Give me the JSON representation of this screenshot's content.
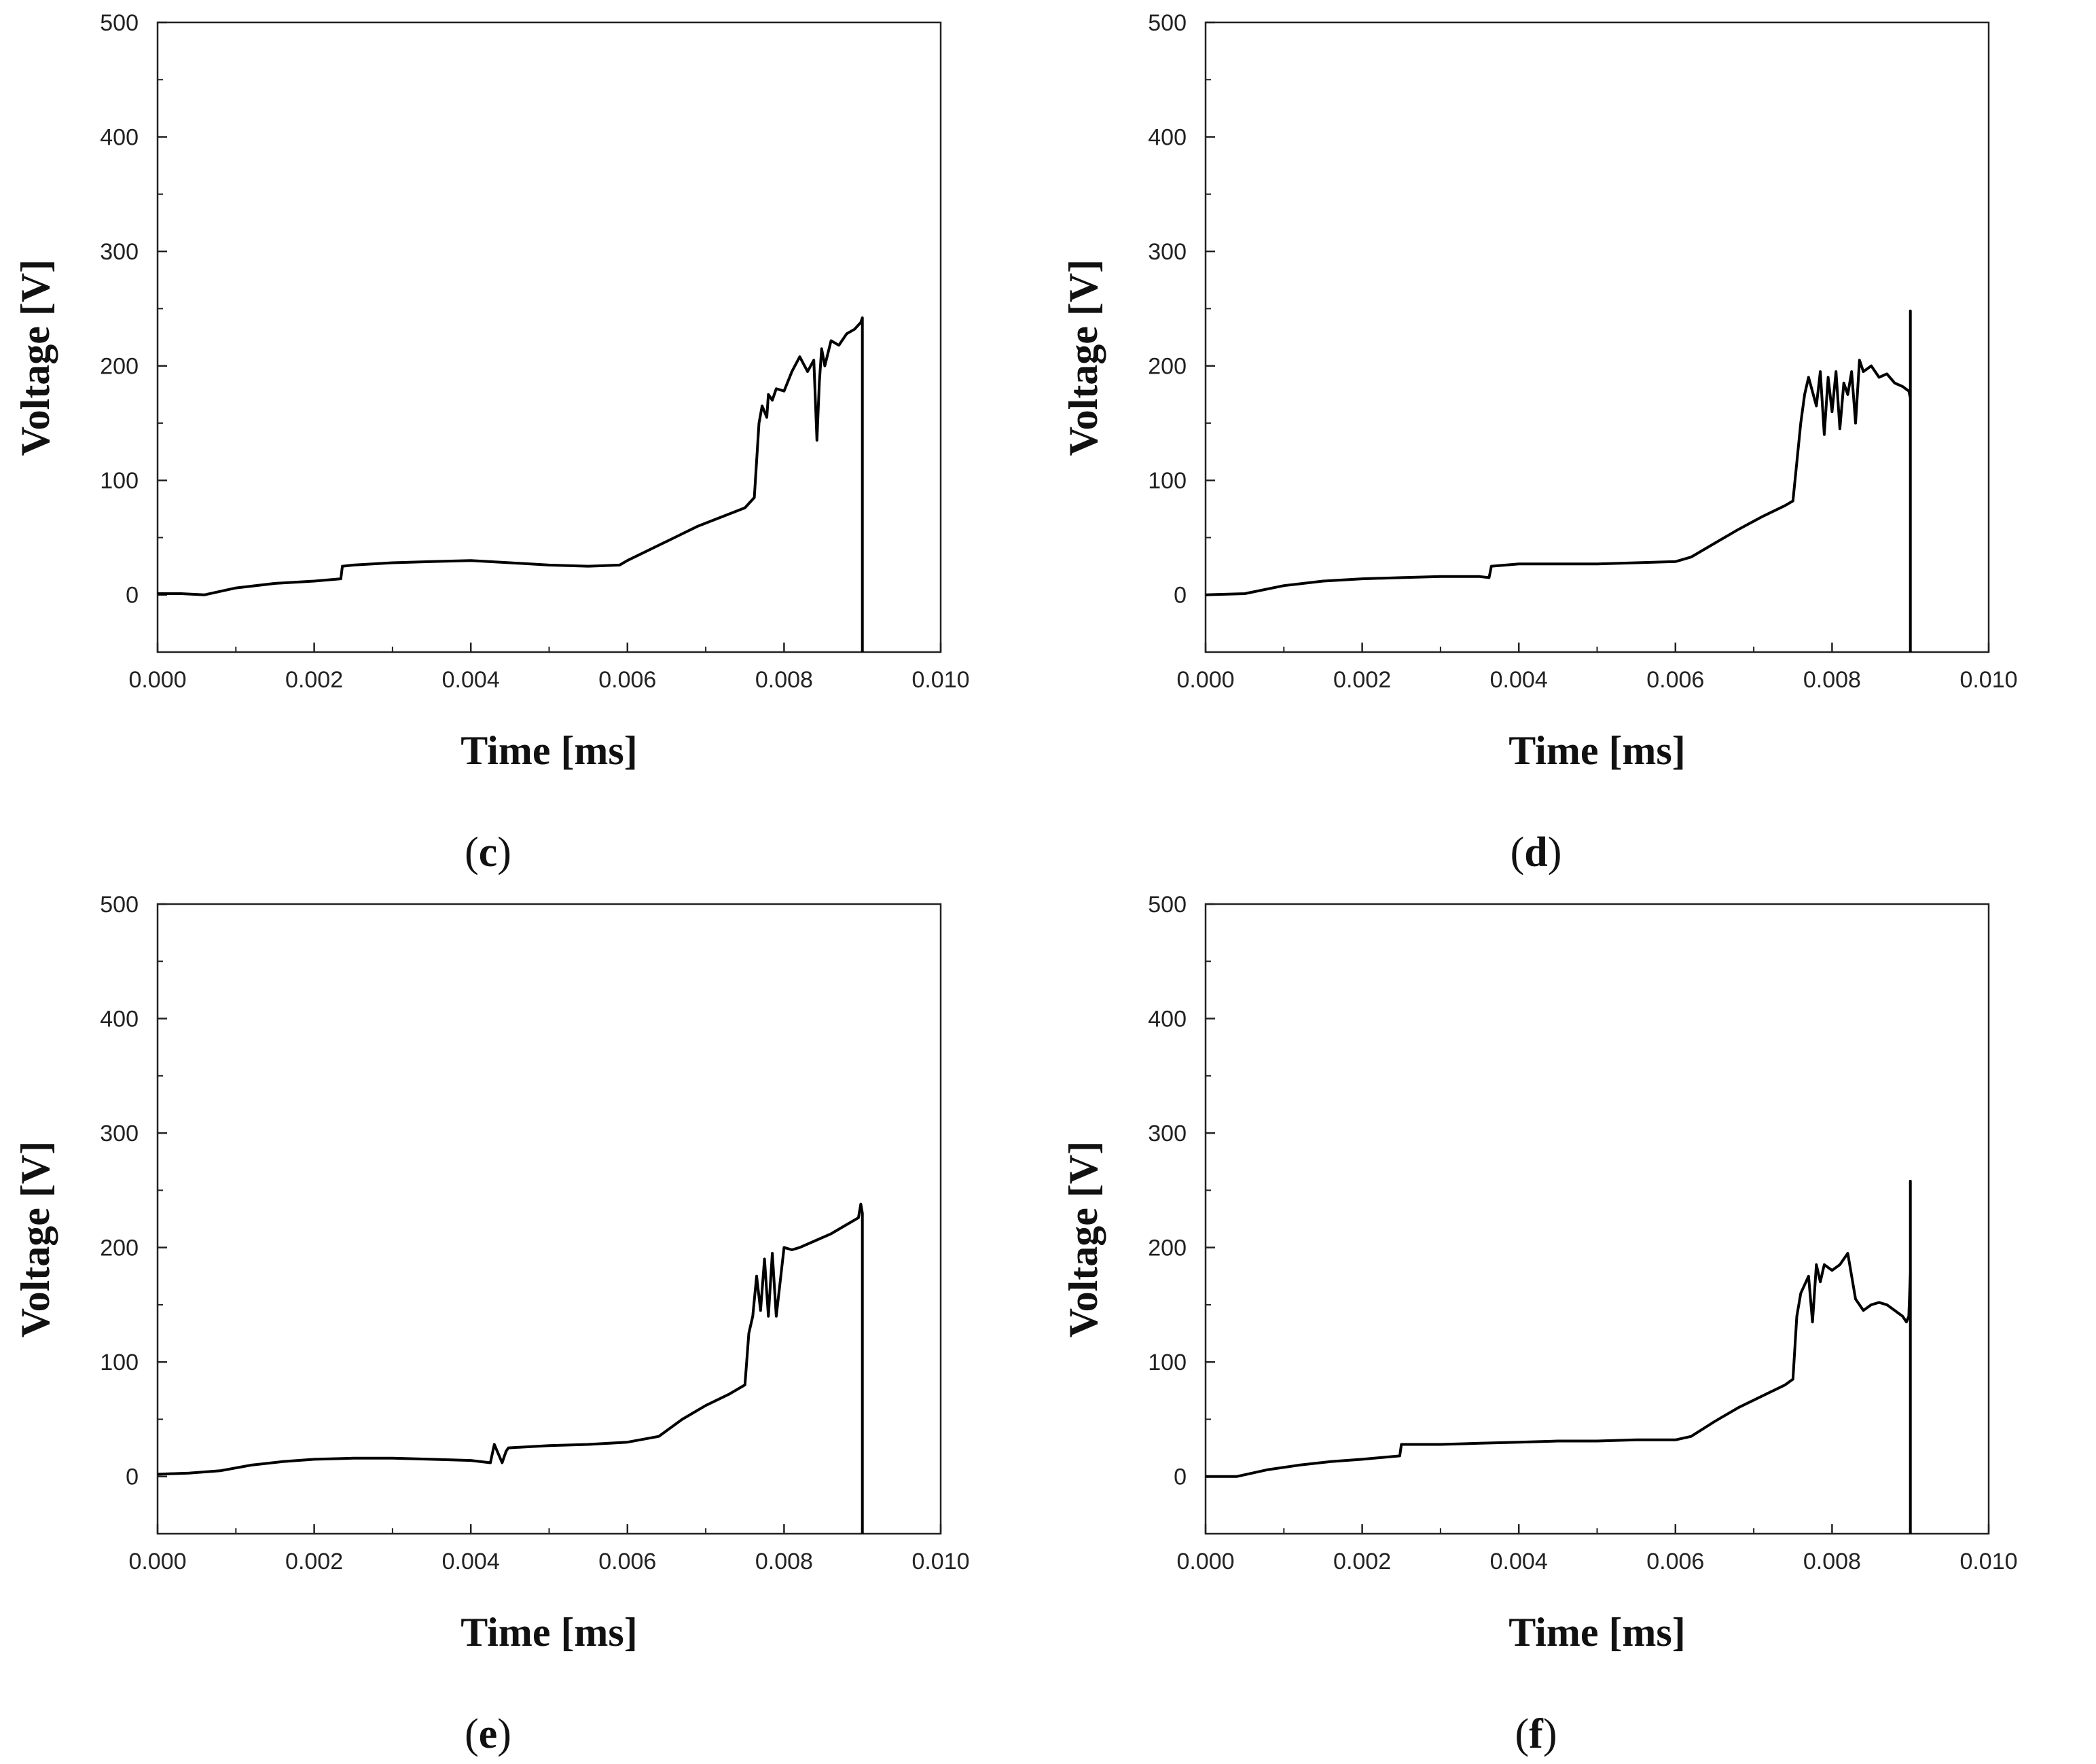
{
  "chart_data": [
    {
      "type": "line",
      "panel_label": "c",
      "xlabel": "Time [ms]",
      "ylabel": "Voltage [V]",
      "xlim": [
        0,
        0.01
      ],
      "ylim": [
        -50,
        500
      ],
      "xticks": [
        "0.000",
        "0.002",
        "0.004",
        "0.006",
        "0.008",
        "0.010"
      ],
      "yticks": [
        "0",
        "100",
        "200",
        "300",
        "400",
        "500"
      ],
      "grid": false,
      "series": [
        {
          "name": "Voltage",
          "x": [
            0,
            0.0003,
            0.0006,
            0.001,
            0.0015,
            0.002,
            0.00234,
            0.00236,
            0.0025,
            0.003,
            0.0035,
            0.004,
            0.0045,
            0.005,
            0.0055,
            0.0059,
            0.006,
            0.0063,
            0.0066,
            0.0069,
            0.0072,
            0.0075,
            0.00762,
            0.00768,
            0.00772,
            0.00778,
            0.0078,
            0.00785,
            0.0079,
            0.008,
            0.0081,
            0.0082,
            0.0083,
            0.00838,
            0.00842,
            0.00845,
            0.00848,
            0.00852,
            0.0086,
            0.0087,
            0.0088,
            0.0089,
            0.00898,
            0.009,
            0.009,
            0.00901
          ],
          "y": [
            1,
            1,
            0,
            6,
            10,
            12,
            14,
            25,
            26,
            28,
            29,
            30,
            28,
            26,
            25,
            26,
            30,
            40,
            50,
            60,
            68,
            76,
            85,
            150,
            165,
            155,
            175,
            170,
            180,
            178,
            195,
            208,
            195,
            205,
            135,
            185,
            215,
            200,
            222,
            218,
            228,
            232,
            238,
            242,
            -50,
            -50
          ]
        }
      ]
    },
    {
      "type": "line",
      "panel_label": "d",
      "xlabel": "Time [ms]",
      "ylabel": "Voltage [V]",
      "xlim": [
        0,
        0.01
      ],
      "ylim": [
        -50,
        500
      ],
      "xticks": [
        "0.000",
        "0.002",
        "0.004",
        "0.006",
        "0.008",
        "0.010"
      ],
      "yticks": [
        "0",
        "100",
        "200",
        "300",
        "400",
        "500"
      ],
      "grid": false,
      "series": [
        {
          "name": "Voltage",
          "x": [
            0,
            0.0005,
            0.001,
            0.0015,
            0.002,
            0.0025,
            0.003,
            0.0035,
            0.00362,
            0.00365,
            0.004,
            0.0045,
            0.005,
            0.0055,
            0.006,
            0.0062,
            0.0065,
            0.0068,
            0.0071,
            0.0074,
            0.0075,
            0.0076,
            0.00765,
            0.0077,
            0.0078,
            0.00785,
            0.0079,
            0.00795,
            0.008,
            0.00805,
            0.0081,
            0.00815,
            0.0082,
            0.00825,
            0.0083,
            0.00835,
            0.0084,
            0.0085,
            0.0086,
            0.0087,
            0.0088,
            0.0089,
            0.00898,
            0.009,
            0.009,
            0.009,
            0.00901
          ],
          "y": [
            0,
            1,
            8,
            12,
            14,
            15,
            16,
            16,
            15,
            25,
            27,
            27,
            27,
            28,
            29,
            33,
            45,
            57,
            68,
            78,
            82,
            150,
            175,
            190,
            165,
            195,
            140,
            190,
            160,
            195,
            145,
            185,
            175,
            195,
            150,
            205,
            195,
            200,
            190,
            193,
            185,
            182,
            178,
            172,
            248,
            -50,
            -50
          ]
        }
      ]
    },
    {
      "type": "line",
      "panel_label": "e",
      "xlabel": "Time [ms]",
      "ylabel": "Voltage [V]",
      "xlim": [
        0,
        0.01
      ],
      "ylim": [
        -50,
        500
      ],
      "xticks": [
        "0.000",
        "0.002",
        "0.004",
        "0.006",
        "0.008",
        "0.010"
      ],
      "yticks": [
        "0",
        "100",
        "200",
        "300",
        "400",
        "500"
      ],
      "grid": false,
      "series": [
        {
          "name": "Voltage",
          "x": [
            0,
            0.0004,
            0.0008,
            0.0012,
            0.0016,
            0.002,
            0.0025,
            0.003,
            0.0035,
            0.004,
            0.00425,
            0.0043,
            0.0044,
            0.00445,
            0.00448,
            0.005,
            0.0055,
            0.006,
            0.0064,
            0.0067,
            0.007,
            0.0073,
            0.0075,
            0.00755,
            0.0076,
            0.00765,
            0.0077,
            0.00775,
            0.0078,
            0.00785,
            0.0079,
            0.008,
            0.0081,
            0.0082,
            0.0084,
            0.0086,
            0.0088,
            0.00895,
            0.00898,
            0.009,
            0.009,
            0.00901
          ],
          "y": [
            2,
            3,
            5,
            10,
            13,
            15,
            16,
            16,
            15,
            14,
            12,
            28,
            12,
            22,
            25,
            27,
            28,
            30,
            35,
            50,
            62,
            72,
            80,
            125,
            140,
            175,
            145,
            190,
            140,
            195,
            140,
            200,
            198,
            200,
            206,
            212,
            220,
            226,
            238,
            230,
            -50,
            -50
          ]
        }
      ]
    },
    {
      "type": "line",
      "panel_label": "f",
      "xlabel": "Time [ms]",
      "ylabel": "Voltage [V]",
      "xlim": [
        0,
        0.01
      ],
      "ylim": [
        -50,
        500
      ],
      "xticks": [
        "0.000",
        "0.002",
        "0.004",
        "0.006",
        "0.008",
        "0.010"
      ],
      "yticks": [
        "0",
        "100",
        "200",
        "300",
        "400",
        "500"
      ],
      "grid": false,
      "series": [
        {
          "name": "Voltage",
          "x": [
            0,
            0.0004,
            0.0008,
            0.0012,
            0.0016,
            0.002,
            0.00248,
            0.0025,
            0.003,
            0.0035,
            0.004,
            0.0045,
            0.005,
            0.0055,
            0.006,
            0.0062,
            0.0065,
            0.0068,
            0.0071,
            0.0074,
            0.0075,
            0.00755,
            0.0076,
            0.0077,
            0.00775,
            0.0078,
            0.00785,
            0.0079,
            0.008,
            0.0081,
            0.0082,
            0.0083,
            0.0084,
            0.0085,
            0.0086,
            0.0087,
            0.0088,
            0.0089,
            0.00895,
            0.00898,
            0.009,
            0.009,
            0.009,
            0.00901
          ],
          "y": [
            0,
            0,
            6,
            10,
            13,
            15,
            18,
            28,
            28,
            29,
            30,
            31,
            31,
            32,
            32,
            35,
            48,
            60,
            70,
            80,
            85,
            140,
            160,
            175,
            135,
            185,
            170,
            185,
            180,
            185,
            195,
            155,
            145,
            150,
            152,
            150,
            145,
            140,
            135,
            140,
            178,
            258,
            -50,
            -50
          ]
        }
      ]
    }
  ]
}
